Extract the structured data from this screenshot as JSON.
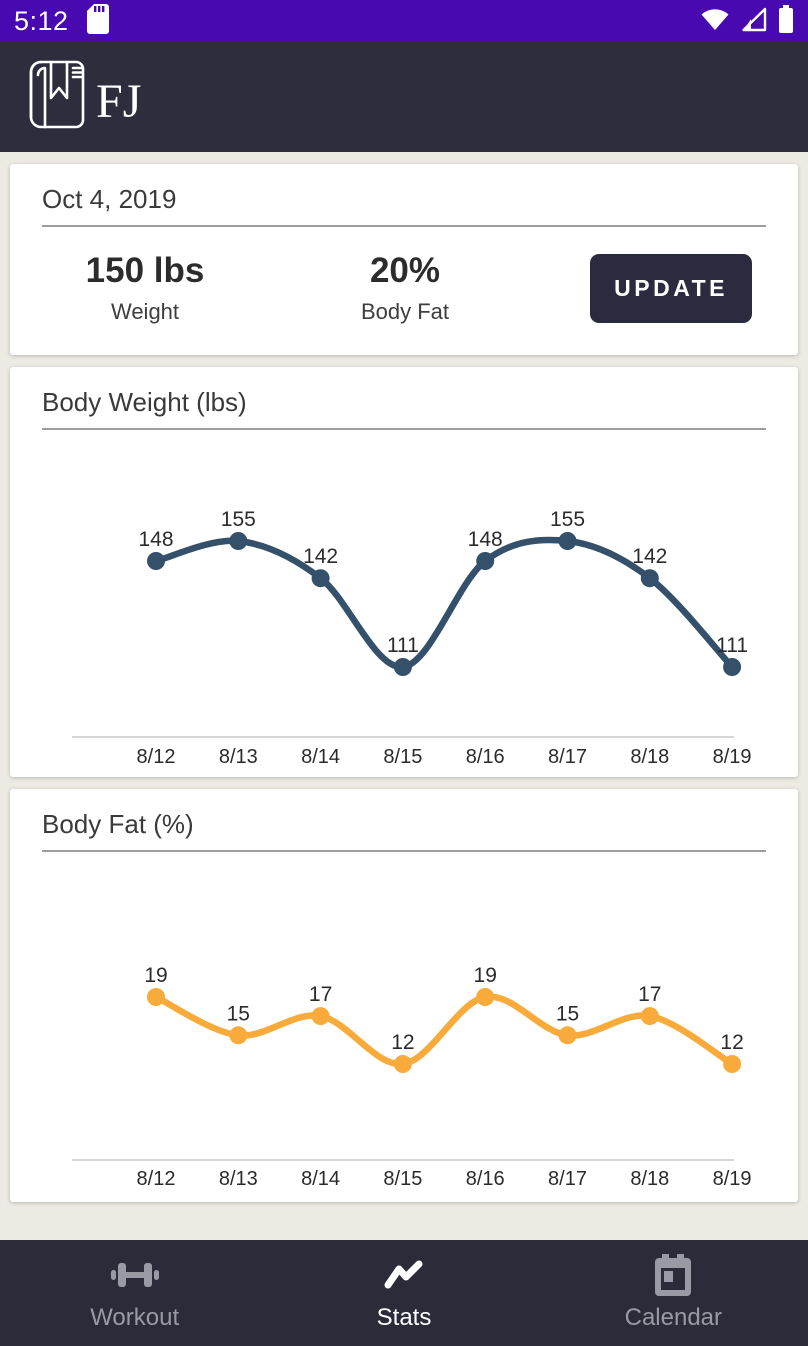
{
  "status_bar": {
    "time": "5:12",
    "left_icons": [
      "sd-card-icon"
    ],
    "right_icons": [
      "wifi-icon",
      "cellular-signal-icon",
      "battery-icon"
    ]
  },
  "header": {
    "logo_text": "FJ",
    "logo_icon": "journal-book-icon"
  },
  "summary_card": {
    "date": "Oct 4, 2019",
    "metrics": [
      {
        "value": "150 lbs",
        "label": "Weight"
      },
      {
        "value": "20%",
        "label": "Body Fat"
      }
    ],
    "update_button_label": "UPDATE"
  },
  "chart_data": [
    {
      "type": "line",
      "title": "Body Weight (lbs)",
      "categories": [
        "8/12",
        "8/13",
        "8/14",
        "8/15",
        "8/16",
        "8/17",
        "8/18",
        "8/19"
      ],
      "values": [
        148,
        155,
        142,
        111,
        148,
        155,
        142,
        111
      ],
      "color": "#34506B",
      "point_labels": true,
      "grid": false,
      "legend": false,
      "ylim": [
        111,
        155
      ],
      "xlabel": "",
      "ylabel": ""
    },
    {
      "type": "line",
      "title": "Body Fat (%)",
      "categories": [
        "8/12",
        "8/13",
        "8/14",
        "8/15",
        "8/16",
        "8/17",
        "8/18",
        "8/19"
      ],
      "values": [
        19,
        15,
        17,
        12,
        19,
        15,
        17,
        12
      ],
      "color": "#F8AA3A",
      "point_labels": true,
      "grid": false,
      "legend": false,
      "ylim": [
        12,
        19
      ],
      "xlabel": "",
      "ylabel": ""
    }
  ],
  "bottom_nav": {
    "items": [
      {
        "label": "Workout",
        "icon": "dumbbell-icon",
        "active": false
      },
      {
        "label": "Stats",
        "icon": "stats-chart-icon",
        "active": true
      },
      {
        "label": "Calendar",
        "icon": "calendar-icon",
        "active": false
      }
    ]
  },
  "colors": {
    "status_bar": "#4809B1",
    "header": "#2D2D3E",
    "bottom_nav": "#2B2B3A",
    "page_background": "#EDEAE3",
    "card_background": "#FFFFFF",
    "weight_line": "#34506B",
    "body_fat_line": "#F8AA3A",
    "nav_inactive": "#9A9AA5",
    "button": "#2B2B3F"
  }
}
